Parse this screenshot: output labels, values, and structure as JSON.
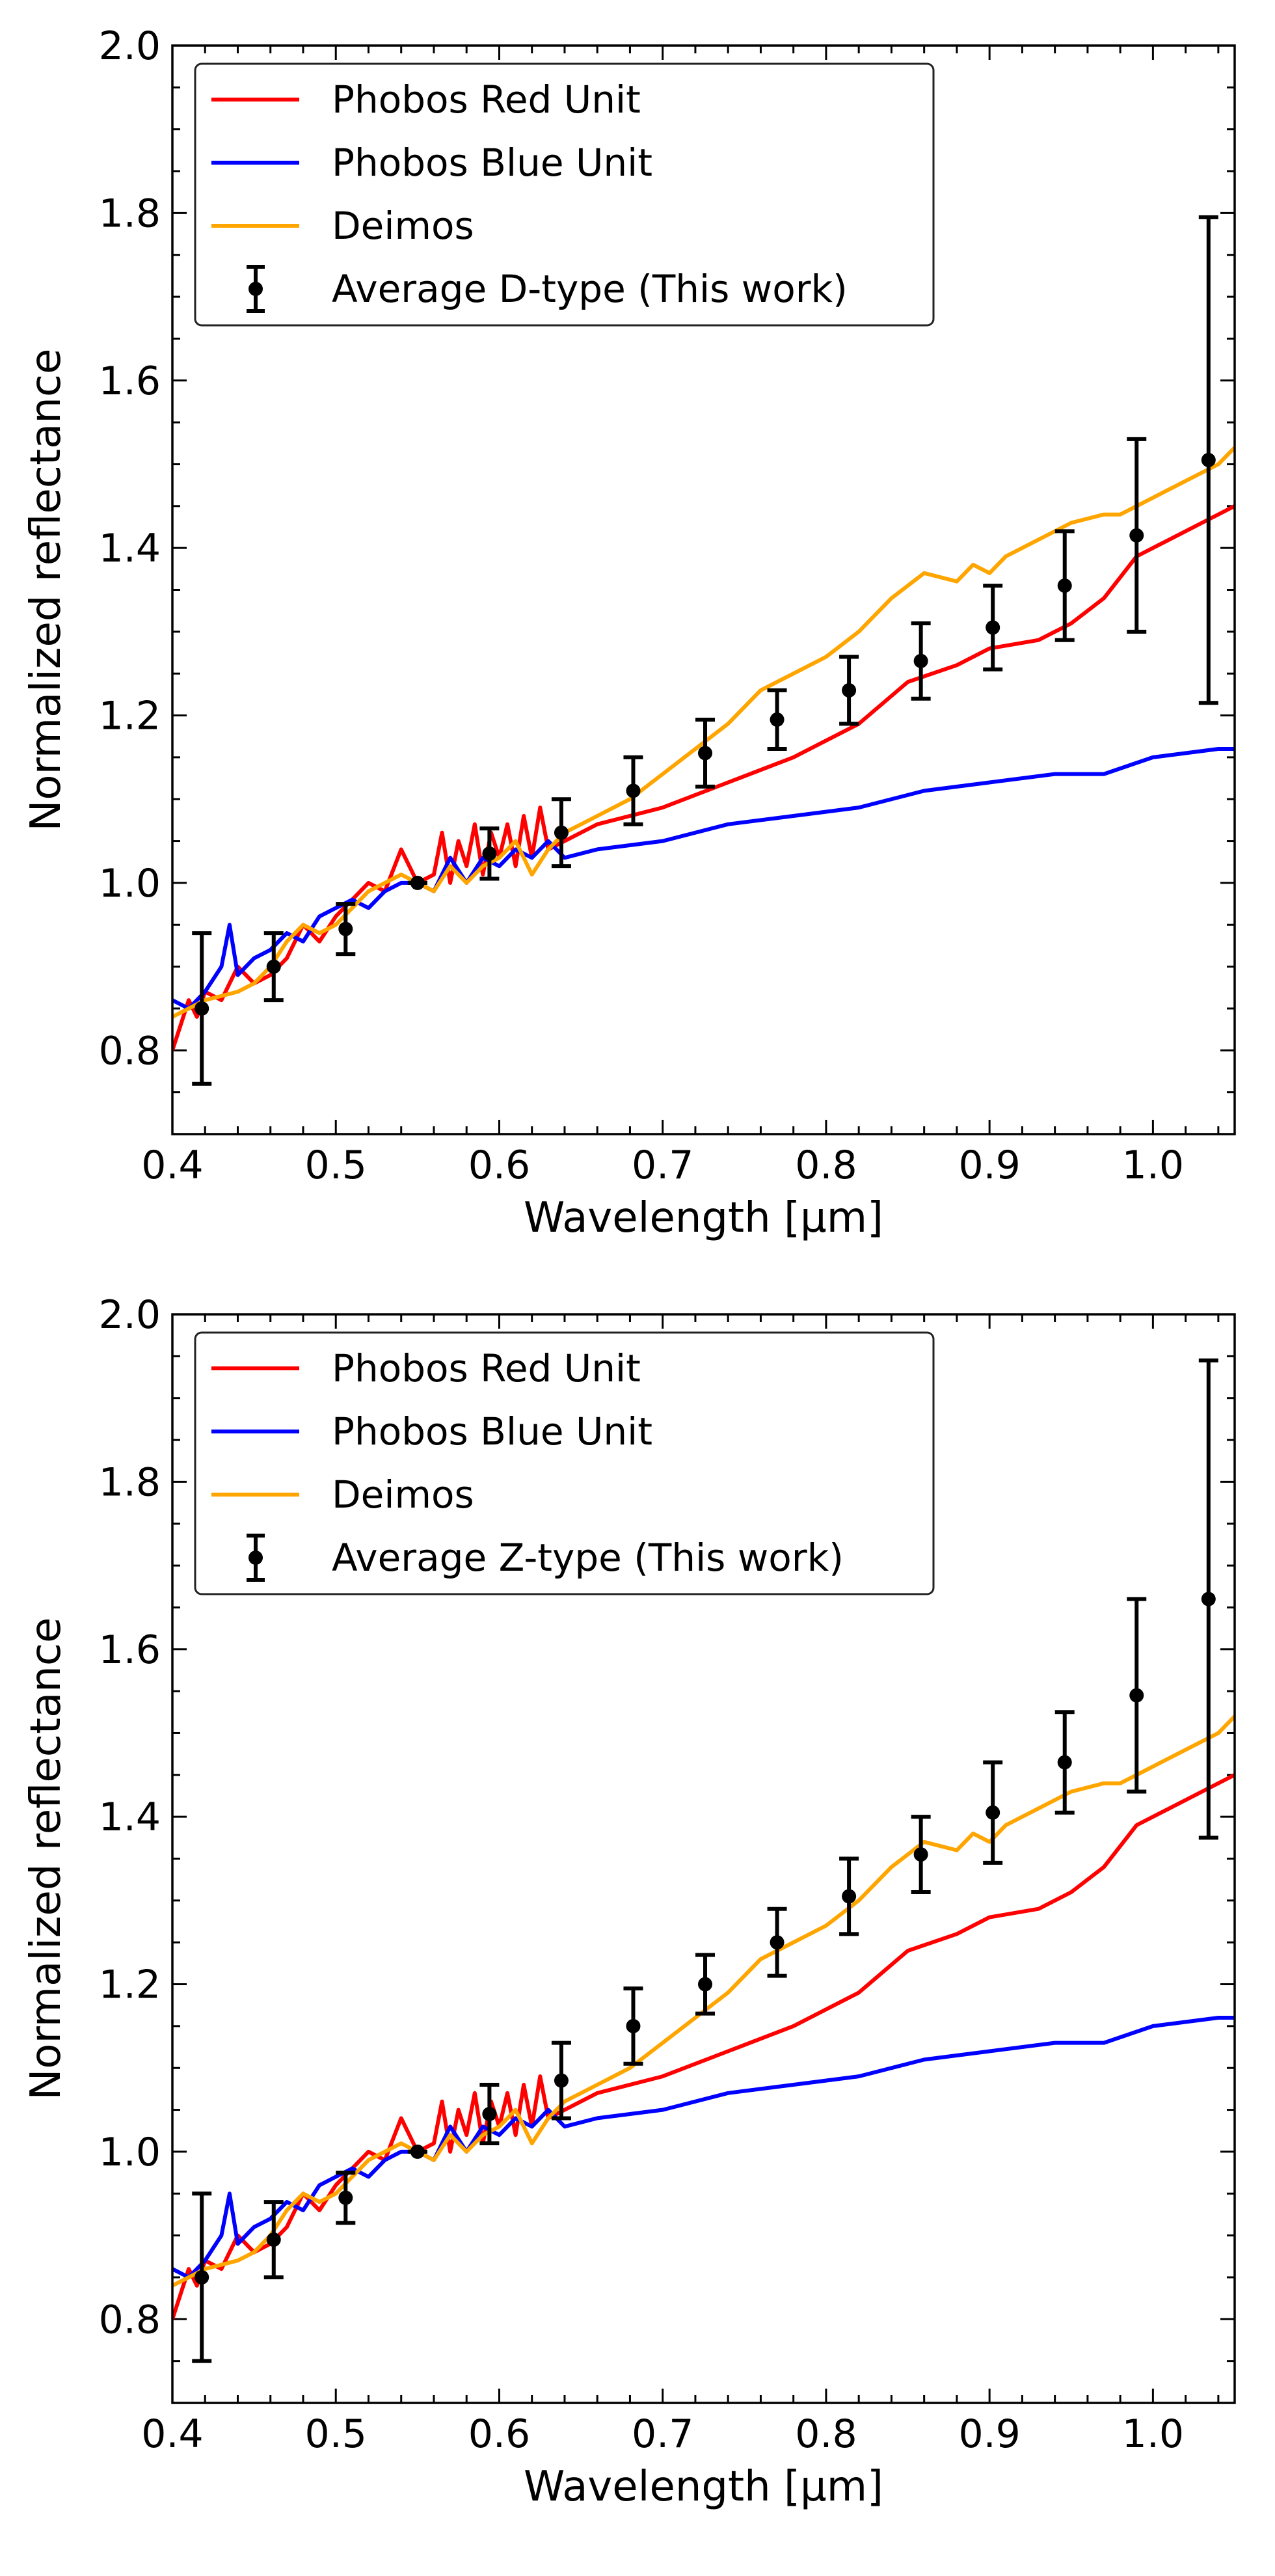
{
  "chart_data": [
    {
      "type": "line",
      "xlabel": "Wavelength [μm]",
      "ylabel": "Normalized reflectance",
      "xlim": [
        0.4,
        1.05
      ],
      "ylim": [
        0.7,
        2.0
      ],
      "x_ticks": [
        "0.4",
        "0.5",
        "0.6",
        "0.7",
        "0.8",
        "0.9",
        "1.0"
      ],
      "y_ticks": [
        "0.8",
        "1.0",
        "1.2",
        "1.4",
        "1.6",
        "1.8",
        "2.0"
      ],
      "legend_position": "top-left",
      "series": [
        {
          "name": "Phobos Red Unit",
          "color": "#ff0000",
          "x": [
            0.4,
            0.405,
            0.41,
            0.415,
            0.42,
            0.43,
            0.44,
            0.45,
            0.46,
            0.47,
            0.48,
            0.49,
            0.5,
            0.51,
            0.52,
            0.53,
            0.54,
            0.55,
            0.56,
            0.565,
            0.57,
            0.575,
            0.58,
            0.585,
            0.59,
            0.595,
            0.6,
            0.605,
            0.61,
            0.615,
            0.62,
            0.625,
            0.63,
            0.64,
            0.66,
            0.7,
            0.74,
            0.78,
            0.82,
            0.85,
            0.88,
            0.9,
            0.93,
            0.95,
            0.97,
            0.99,
            1.01,
            1.03,
            1.05
          ],
          "y": [
            0.8,
            0.83,
            0.86,
            0.84,
            0.87,
            0.86,
            0.9,
            0.88,
            0.89,
            0.91,
            0.95,
            0.93,
            0.96,
            0.98,
            1.0,
            0.99,
            1.04,
            1.0,
            1.01,
            1.06,
            1.0,
            1.05,
            1.02,
            1.07,
            1.01,
            1.06,
            1.03,
            1.07,
            1.02,
            1.08,
            1.03,
            1.09,
            1.04,
            1.05,
            1.07,
            1.09,
            1.12,
            1.15,
            1.19,
            1.24,
            1.26,
            1.28,
            1.29,
            1.31,
            1.34,
            1.39,
            1.41,
            1.43,
            1.45
          ]
        },
        {
          "name": "Phobos Blue Unit",
          "color": "#0000ff",
          "x": [
            0.4,
            0.41,
            0.42,
            0.43,
            0.435,
            0.44,
            0.45,
            0.46,
            0.47,
            0.48,
            0.49,
            0.5,
            0.51,
            0.52,
            0.53,
            0.54,
            0.55,
            0.56,
            0.57,
            0.58,
            0.59,
            0.6,
            0.61,
            0.62,
            0.63,
            0.64,
            0.66,
            0.7,
            0.74,
            0.78,
            0.82,
            0.86,
            0.9,
            0.94,
            0.97,
            1.0,
            1.04,
            1.05
          ],
          "y": [
            0.86,
            0.85,
            0.87,
            0.9,
            0.95,
            0.89,
            0.91,
            0.92,
            0.94,
            0.93,
            0.96,
            0.97,
            0.98,
            0.97,
            0.99,
            1.0,
            1.0,
            0.99,
            1.03,
            1.0,
            1.03,
            1.02,
            1.04,
            1.03,
            1.05,
            1.03,
            1.04,
            1.05,
            1.07,
            1.08,
            1.09,
            1.11,
            1.12,
            1.13,
            1.13,
            1.15,
            1.16,
            1.16
          ]
        },
        {
          "name": "Deimos",
          "color": "#ffa500",
          "x": [
            0.4,
            0.42,
            0.44,
            0.45,
            0.46,
            0.47,
            0.48,
            0.49,
            0.5,
            0.51,
            0.52,
            0.53,
            0.54,
            0.55,
            0.56,
            0.57,
            0.58,
            0.59,
            0.6,
            0.61,
            0.62,
            0.63,
            0.64,
            0.66,
            0.68,
            0.7,
            0.72,
            0.74,
            0.76,
            0.78,
            0.8,
            0.82,
            0.84,
            0.86,
            0.88,
            0.89,
            0.9,
            0.91,
            0.93,
            0.95,
            0.97,
            0.98,
            0.99,
            1.0,
            1.02,
            1.04,
            1.05
          ],
          "y": [
            0.84,
            0.86,
            0.87,
            0.88,
            0.9,
            0.93,
            0.95,
            0.94,
            0.95,
            0.97,
            0.99,
            1.0,
            1.01,
            1.0,
            0.99,
            1.02,
            1.0,
            1.02,
            1.03,
            1.05,
            1.01,
            1.04,
            1.06,
            1.08,
            1.1,
            1.13,
            1.16,
            1.19,
            1.23,
            1.25,
            1.27,
            1.3,
            1.34,
            1.37,
            1.36,
            1.38,
            1.37,
            1.39,
            1.41,
            1.43,
            1.44,
            1.44,
            1.45,
            1.46,
            1.48,
            1.5,
            1.52
          ]
        },
        {
          "name": "Average D-type (This work)",
          "color": "#000000",
          "errorbar": true,
          "x": [
            0.418,
            0.462,
            0.506,
            0.55,
            0.594,
            0.638,
            0.682,
            0.726,
            0.77,
            0.814,
            0.858,
            0.902,
            0.946,
            0.99,
            1.034
          ],
          "y": [
            0.85,
            0.9,
            0.945,
            1.0,
            1.035,
            1.06,
            1.11,
            1.155,
            1.195,
            1.23,
            1.265,
            1.305,
            1.355,
            1.415,
            1.505
          ],
          "yerr": [
            0.09,
            0.04,
            0.03,
            0.0,
            0.03,
            0.04,
            0.04,
            0.04,
            0.035,
            0.04,
            0.045,
            0.05,
            0.065,
            0.115,
            0.29
          ]
        }
      ]
    },
    {
      "type": "line",
      "xlabel": "Wavelength [μm]",
      "ylabel": "Normalized reflectance",
      "xlim": [
        0.4,
        1.05
      ],
      "ylim": [
        0.7,
        2.0
      ],
      "x_ticks": [
        "0.4",
        "0.5",
        "0.6",
        "0.7",
        "0.8",
        "0.9",
        "1.0"
      ],
      "y_ticks": [
        "0.8",
        "1.0",
        "1.2",
        "1.4",
        "1.6",
        "1.8",
        "2.0"
      ],
      "legend_position": "top-left",
      "series": [
        {
          "name": "Phobos Red Unit",
          "color": "#ff0000",
          "x": [
            0.4,
            0.405,
            0.41,
            0.415,
            0.42,
            0.43,
            0.44,
            0.45,
            0.46,
            0.47,
            0.48,
            0.49,
            0.5,
            0.51,
            0.52,
            0.53,
            0.54,
            0.55,
            0.56,
            0.565,
            0.57,
            0.575,
            0.58,
            0.585,
            0.59,
            0.595,
            0.6,
            0.605,
            0.61,
            0.615,
            0.62,
            0.625,
            0.63,
            0.64,
            0.66,
            0.7,
            0.74,
            0.78,
            0.82,
            0.85,
            0.88,
            0.9,
            0.93,
            0.95,
            0.97,
            0.99,
            1.01,
            1.03,
            1.05
          ],
          "y": [
            0.8,
            0.83,
            0.86,
            0.84,
            0.87,
            0.86,
            0.9,
            0.88,
            0.89,
            0.91,
            0.95,
            0.93,
            0.96,
            0.98,
            1.0,
            0.99,
            1.04,
            1.0,
            1.01,
            1.06,
            1.0,
            1.05,
            1.02,
            1.07,
            1.01,
            1.06,
            1.03,
            1.07,
            1.02,
            1.08,
            1.03,
            1.09,
            1.04,
            1.05,
            1.07,
            1.09,
            1.12,
            1.15,
            1.19,
            1.24,
            1.26,
            1.28,
            1.29,
            1.31,
            1.34,
            1.39,
            1.41,
            1.43,
            1.45
          ]
        },
        {
          "name": "Phobos Blue Unit",
          "color": "#0000ff",
          "x": [
            0.4,
            0.41,
            0.42,
            0.43,
            0.435,
            0.44,
            0.45,
            0.46,
            0.47,
            0.48,
            0.49,
            0.5,
            0.51,
            0.52,
            0.53,
            0.54,
            0.55,
            0.56,
            0.57,
            0.58,
            0.59,
            0.6,
            0.61,
            0.62,
            0.63,
            0.64,
            0.66,
            0.7,
            0.74,
            0.78,
            0.82,
            0.86,
            0.9,
            0.94,
            0.97,
            1.0,
            1.04,
            1.05
          ],
          "y": [
            0.86,
            0.85,
            0.87,
            0.9,
            0.95,
            0.89,
            0.91,
            0.92,
            0.94,
            0.93,
            0.96,
            0.97,
            0.98,
            0.97,
            0.99,
            1.0,
            1.0,
            0.99,
            1.03,
            1.0,
            1.03,
            1.02,
            1.04,
            1.03,
            1.05,
            1.03,
            1.04,
            1.05,
            1.07,
            1.08,
            1.09,
            1.11,
            1.12,
            1.13,
            1.13,
            1.15,
            1.16,
            1.16
          ]
        },
        {
          "name": "Deimos",
          "color": "#ffa500",
          "x": [
            0.4,
            0.42,
            0.44,
            0.45,
            0.46,
            0.47,
            0.48,
            0.49,
            0.5,
            0.51,
            0.52,
            0.53,
            0.54,
            0.55,
            0.56,
            0.57,
            0.58,
            0.59,
            0.6,
            0.61,
            0.62,
            0.63,
            0.64,
            0.66,
            0.68,
            0.7,
            0.72,
            0.74,
            0.76,
            0.78,
            0.8,
            0.82,
            0.84,
            0.86,
            0.88,
            0.89,
            0.9,
            0.91,
            0.93,
            0.95,
            0.97,
            0.98,
            0.99,
            1.0,
            1.02,
            1.04,
            1.05
          ],
          "y": [
            0.84,
            0.86,
            0.87,
            0.88,
            0.9,
            0.93,
            0.95,
            0.94,
            0.95,
            0.97,
            0.99,
            1.0,
            1.01,
            1.0,
            0.99,
            1.02,
            1.0,
            1.02,
            1.03,
            1.05,
            1.01,
            1.04,
            1.06,
            1.08,
            1.1,
            1.13,
            1.16,
            1.19,
            1.23,
            1.25,
            1.27,
            1.3,
            1.34,
            1.37,
            1.36,
            1.38,
            1.37,
            1.39,
            1.41,
            1.43,
            1.44,
            1.44,
            1.45,
            1.46,
            1.48,
            1.5,
            1.52
          ]
        },
        {
          "name": "Average Z-type (This work)",
          "color": "#000000",
          "errorbar": true,
          "x": [
            0.418,
            0.462,
            0.506,
            0.55,
            0.594,
            0.638,
            0.682,
            0.726,
            0.77,
            0.814,
            0.858,
            0.902,
            0.946,
            0.99,
            1.034
          ],
          "y": [
            0.85,
            0.895,
            0.945,
            1.0,
            1.045,
            1.085,
            1.15,
            1.2,
            1.25,
            1.305,
            1.355,
            1.405,
            1.465,
            1.545,
            1.66
          ],
          "yerr": [
            0.1,
            0.045,
            0.03,
            0.0,
            0.035,
            0.045,
            0.045,
            0.035,
            0.04,
            0.045,
            0.045,
            0.06,
            0.06,
            0.115,
            0.285
          ]
        }
      ]
    }
  ]
}
